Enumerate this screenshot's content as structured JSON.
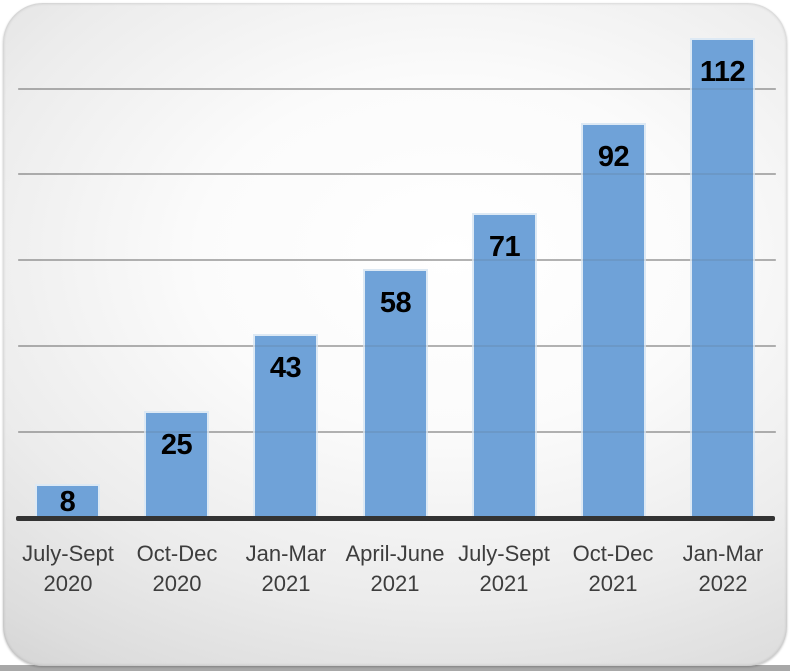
{
  "chart_data": {
    "type": "bar",
    "title": "",
    "xlabel": "",
    "ylabel": "",
    "categories": [
      "July-Sept 2020",
      "Oct-Dec 2020",
      "Jan-Mar 2021",
      "April-June 2021",
      "July-Sept 2021",
      "Oct-Dec 2021",
      "Jan-Mar 2022"
    ],
    "values": [
      8,
      25,
      43,
      58,
      71,
      92,
      112
    ],
    "data_labels": [
      "8",
      "25",
      "43",
      "58",
      "71",
      "92",
      "112"
    ],
    "ylim": [
      0,
      120
    ],
    "gridline_values": [
      20,
      40,
      60,
      80,
      100
    ],
    "grid": true,
    "legend_position": "none",
    "data_label_position": "inside-end",
    "colors": {
      "bar_fill": "#6fa2d8",
      "bar_border": "#dde9f4",
      "axis_line": "#333333",
      "gridline": "rgba(100,100,100,0.40)",
      "data_label": "#000000",
      "category_label": "#3d3d3d",
      "card_center": "#ffffff",
      "card_edge": "#c2c2c2",
      "bottom_strip": "#a8a8a8"
    }
  }
}
